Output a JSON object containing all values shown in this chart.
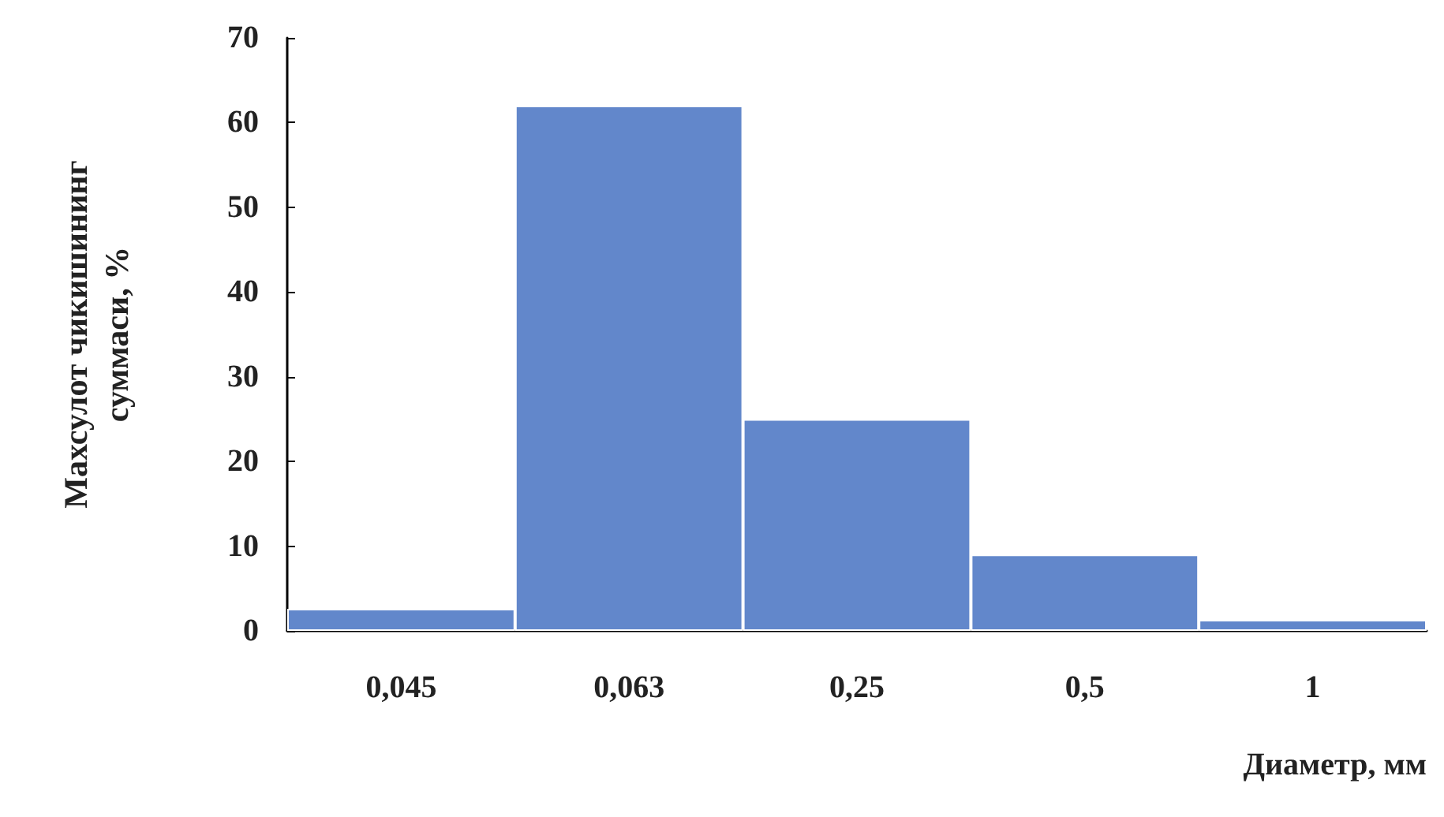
{
  "chart_data": {
    "type": "bar",
    "xlabel": "Диаметр, мм",
    "ylabel": "Махсулот чикишининг\nсуммаси, %",
    "categories": [
      "0,045",
      "0,063",
      "0,25",
      "0,5",
      "1"
    ],
    "values": [
      2.6,
      62,
      25,
      9,
      1.3
    ],
    "color": "#6287cb",
    "ylim": [
      0,
      70
    ],
    "yticks": [
      0,
      10,
      20,
      30,
      40,
      50,
      60,
      70
    ],
    "grid": false
  }
}
